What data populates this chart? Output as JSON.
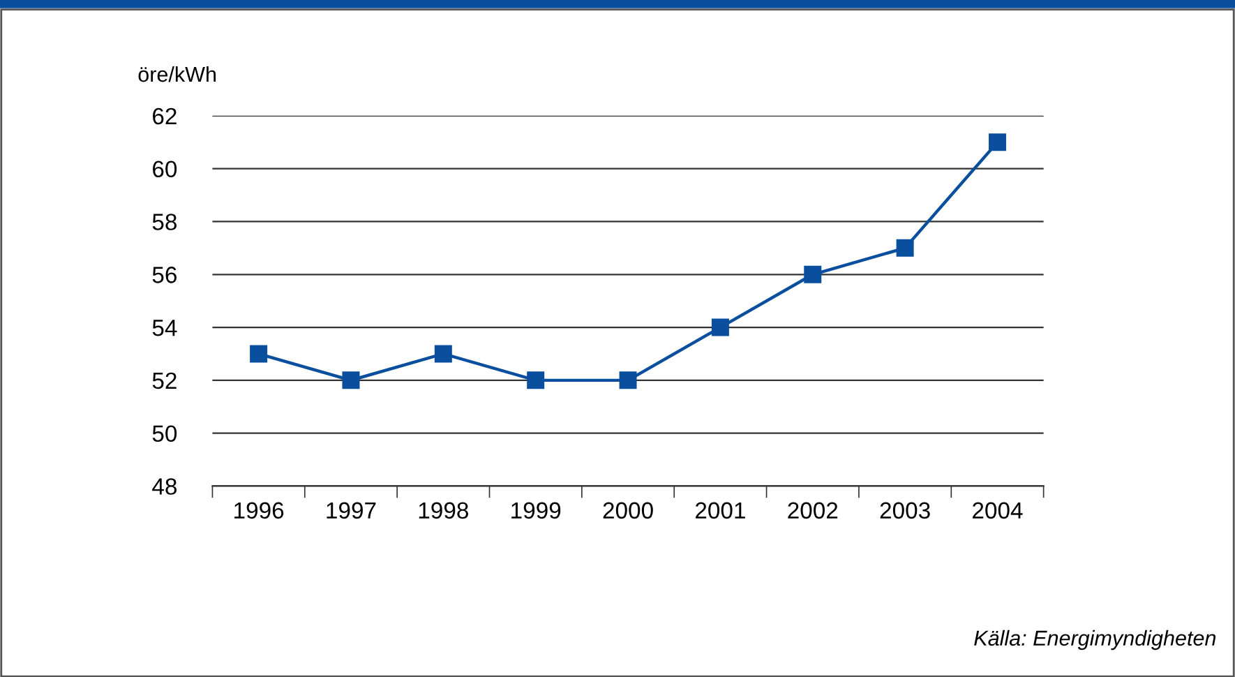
{
  "chart_data": {
    "type": "line",
    "ylabel": "öre/kWh",
    "categories": [
      "1996",
      "1997",
      "1998",
      "1999",
      "2000",
      "2001",
      "2002",
      "2003",
      "2004"
    ],
    "series": [
      {
        "color": "#0a4f9e",
        "values": [
          53,
          52,
          53,
          52,
          52,
          54,
          56,
          57,
          61
        ]
      }
    ],
    "ylim": [
      48,
      62
    ],
    "yticks": [
      48,
      50,
      52,
      54,
      56,
      58,
      60,
      62
    ],
    "grid": "y",
    "marker": "square",
    "line_style": "solid",
    "annotations": [
      "Källa: Energimyndigheten"
    ]
  }
}
